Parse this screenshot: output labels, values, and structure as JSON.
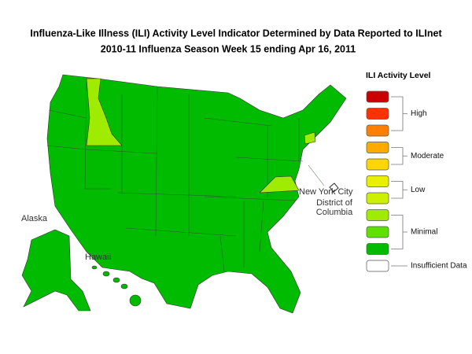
{
  "header": {
    "title": "Influenza-Like Illness (ILI) Activity Level Indicator Determined by Data Reported to ILInet",
    "subtitle": "2010-11  Influenza Season Week  15 ending Apr 16, 2011"
  },
  "map": {
    "labels": {
      "alaska": "Alaska",
      "hawaii": "Hawaii",
      "nyc": "New York City",
      "dc": [
        "District of",
        "Columbia"
      ]
    }
  },
  "legend": {
    "title": "ILI Activity Level",
    "colors": [
      "#cc0000",
      "#ff3300",
      "#ff8000",
      "#ffaa00",
      "#ffd700",
      "#e8f000",
      "#ccf000",
      "#a0ec00",
      "#5ee000",
      "#00bb00",
      "#ffffff"
    ],
    "groups": [
      {
        "label": "High",
        "from": 0,
        "to": 2
      },
      {
        "label": "Moderate",
        "from": 3,
        "to": 4
      },
      {
        "label": "Low",
        "from": 5,
        "to": 6
      },
      {
        "label": "Minimal",
        "from": 7,
        "to": 9
      },
      {
        "label": "Insufficient Data",
        "from": 10,
        "to": 10
      }
    ]
  }
}
